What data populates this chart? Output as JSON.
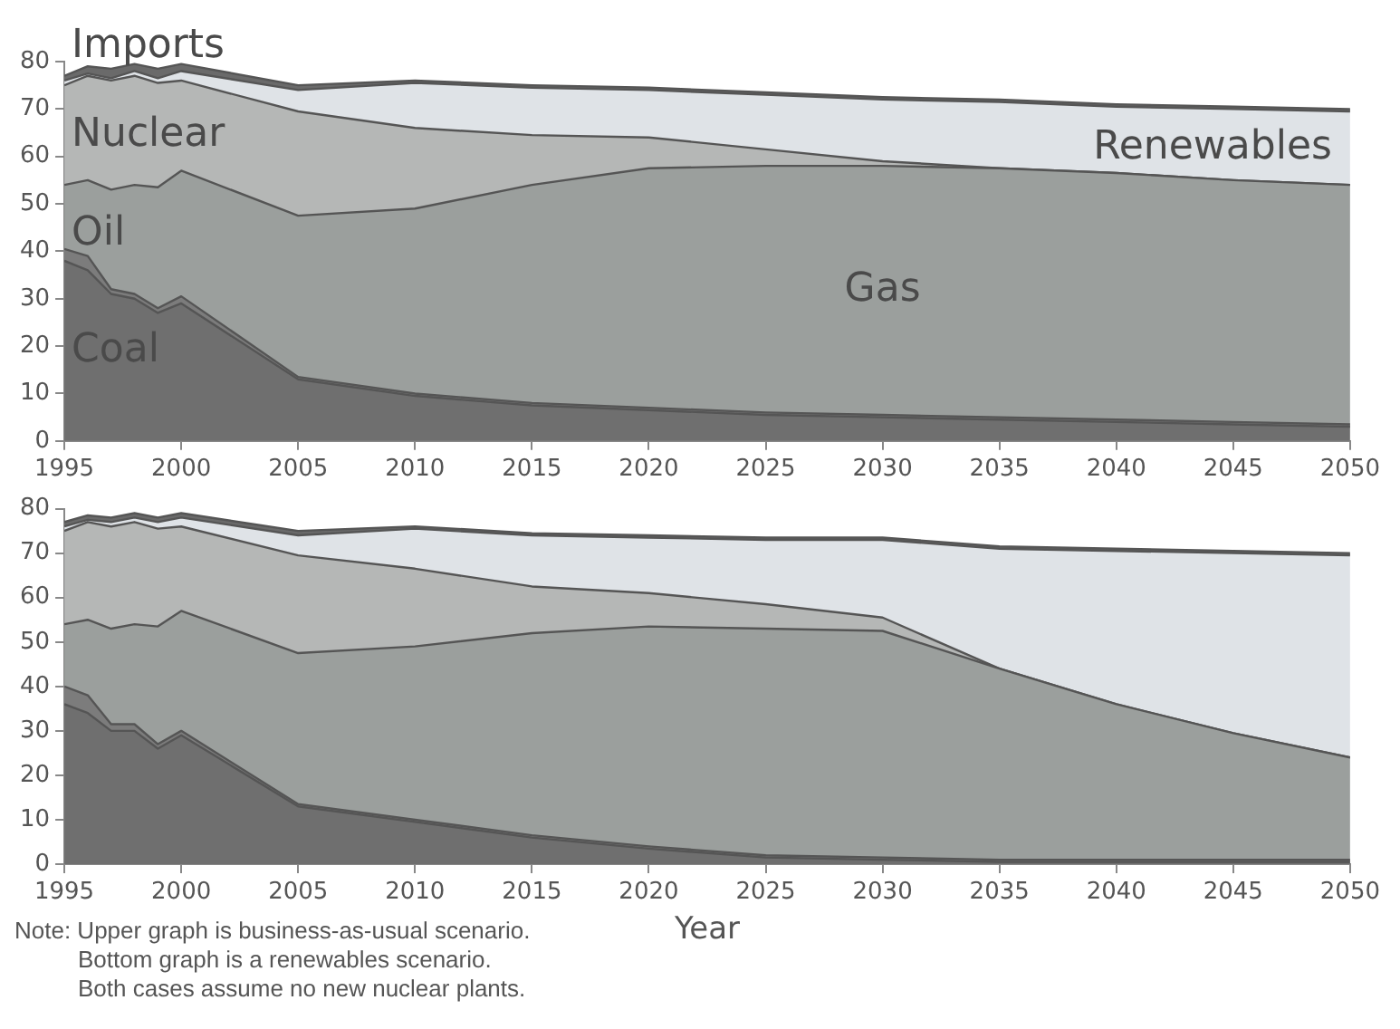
{
  "chart_data": [
    {
      "type": "area",
      "stacked": true,
      "legend": false,
      "grid": false,
      "x": [
        1995,
        1996,
        1997,
        1998,
        1999,
        2000,
        2005,
        2010,
        2015,
        2020,
        2025,
        2030,
        2035,
        2040,
        2045,
        2050
      ],
      "xlim": [
        1995,
        2050
      ],
      "xticks": [
        1995,
        2000,
        2005,
        2010,
        2015,
        2020,
        2025,
        2030,
        2035,
        2040,
        2045,
        2050
      ],
      "ylim": [
        0,
        80
      ],
      "yticks": [
        0,
        10,
        20,
        30,
        40,
        50,
        60,
        70,
        80
      ],
      "series": [
        {
          "name": "Coal",
          "color": "#6f6f6f",
          "values": [
            38,
            36,
            31,
            30,
            27,
            29,
            13,
            9.5,
            7.5,
            6.5,
            5.5,
            5,
            4.5,
            4,
            3.5,
            3
          ]
        },
        {
          "name": "Oil",
          "color": "#7c7c7c",
          "values": [
            2.5,
            3,
            1,
            1,
            1,
            1.5,
            0.5,
            0.5,
            0.5,
            0.5,
            0.5,
            0.5,
            0.5,
            0.5,
            0.5,
            0.5
          ]
        },
        {
          "name": "Gas",
          "color": "#9b9f9d",
          "values": [
            13.5,
            16,
            21,
            23,
            25.5,
            26.5,
            34,
            39,
            46,
            50.5,
            52,
            52.5,
            52.5,
            52,
            51,
            50.5
          ]
        },
        {
          "name": "Nuclear",
          "color": "#b5b7b6",
          "values": [
            21,
            22,
            23,
            23,
            22,
            19,
            22,
            17,
            10.5,
            6.5,
            3.5,
            1,
            0,
            0,
            0,
            0
          ]
        },
        {
          "name": "Renewables",
          "color": "#dfe3e7",
          "values": [
            1,
            0.5,
            0.5,
            1,
            1,
            2,
            4.5,
            9.5,
            10,
            10,
            11.5,
            13,
            14,
            14,
            15,
            15.5
          ]
        },
        {
          "name": "Imports",
          "color": "#6a6a6a",
          "values": [
            1,
            1.5,
            2,
            1.5,
            2,
            1.5,
            1,
            0.5,
            0.5,
            0.5,
            0.5,
            0.5,
            0.5,
            0.5,
            0.5,
            0.5
          ]
        }
      ]
    },
    {
      "type": "area",
      "stacked": true,
      "legend": false,
      "grid": false,
      "xlabel": "Year",
      "x": [
        1995,
        1996,
        1997,
        1998,
        1999,
        2000,
        2005,
        2010,
        2015,
        2020,
        2025,
        2030,
        2035,
        2040,
        2045,
        2050
      ],
      "xlim": [
        1995,
        2050
      ],
      "xticks": [
        1995,
        2000,
        2005,
        2010,
        2015,
        2020,
        2025,
        2030,
        2035,
        2040,
        2045,
        2050
      ],
      "ylim": [
        0,
        80
      ],
      "yticks": [
        0,
        10,
        20,
        30,
        40,
        50,
        60,
        70,
        80
      ],
      "annotations": [
        "Note: Upper graph is business-as-usual scenario.",
        "Bottom graph is a renewables scenario.",
        "Both cases assume no new nuclear plants."
      ],
      "series": [
        {
          "color": "#6f6f6f",
          "values": [
            36,
            34,
            30,
            30,
            26,
            29,
            13,
            9.5,
            6,
            3.5,
            1.5,
            1,
            0.5,
            0.5,
            0.5,
            0.5
          ]
        },
        {
          "color": "#7c7c7c",
          "values": [
            4,
            4,
            1.5,
            1.5,
            1,
            1,
            0.5,
            0.5,
            0.5,
            0.5,
            0.5,
            0.5,
            0.5,
            0.5,
            0.5,
            0.5
          ]
        },
        {
          "color": "#9b9f9d",
          "values": [
            14,
            17,
            21.5,
            22.5,
            26.5,
            27,
            34,
            39,
            45.5,
            49.5,
            51,
            51,
            43,
            35,
            28.5,
            23
          ]
        },
        {
          "color": "#b5b7b6",
          "values": [
            21,
            22,
            23,
            23,
            22,
            19,
            22,
            17.5,
            10.5,
            7.5,
            5.5,
            3,
            0,
            0,
            0,
            0
          ]
        },
        {
          "color": "#dfe3e7",
          "values": [
            1,
            0.5,
            1,
            1,
            1.5,
            2,
            4.5,
            9,
            11.5,
            12.5,
            14.5,
            17.5,
            27,
            34.5,
            40.5,
            45.5
          ]
        },
        {
          "color": "#6a6a6a",
          "values": [
            1,
            1,
            1,
            1,
            1,
            1,
            1,
            0.5,
            0.5,
            0.5,
            0.5,
            0.5,
            0.5,
            0.5,
            0.5,
            0.5
          ]
        }
      ]
    }
  ]
}
